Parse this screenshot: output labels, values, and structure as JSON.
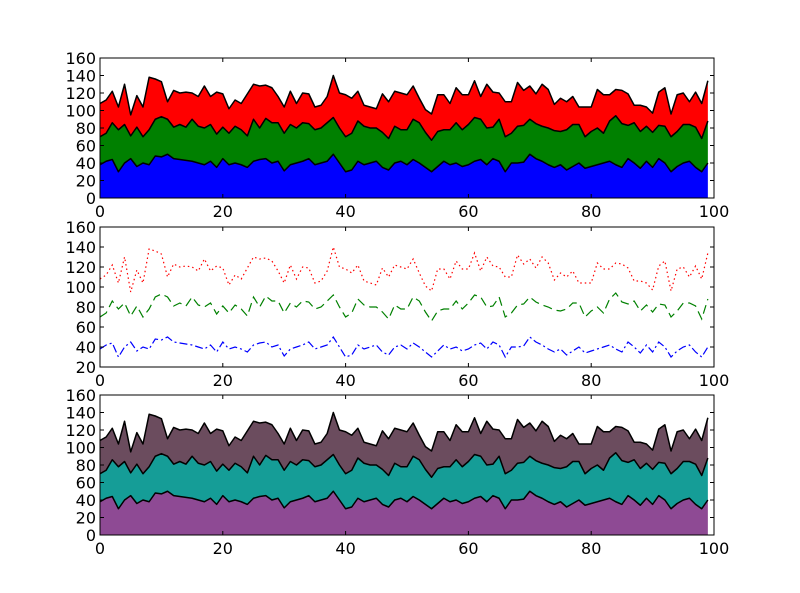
{
  "chart_data": [
    {
      "type": "area",
      "stacked": true,
      "xlim": [
        0,
        100
      ],
      "ylim": [
        0,
        160
      ],
      "xticks": [
        "0",
        "20",
        "40",
        "60",
        "80",
        "100"
      ],
      "yticks": [
        "0",
        "20",
        "40",
        "60",
        "80",
        "100",
        "120",
        "140",
        "160"
      ],
      "colors": [
        "#0000ff",
        "#008000",
        "#ff0000"
      ],
      "edge_color": "#000000",
      "series": [
        {
          "values": [
            38,
            42,
            44,
            30,
            40,
            45,
            36,
            40,
            38,
            48,
            47,
            50,
            45,
            44,
            43,
            42,
            40,
            38,
            42,
            35,
            45,
            38,
            40,
            38,
            35,
            42,
            44,
            45,
            40,
            42,
            31,
            38,
            40,
            42,
            45,
            38,
            40,
            42,
            50,
            40,
            30,
            32,
            42,
            38,
            40,
            42,
            35,
            32,
            40,
            42,
            38,
            44,
            40,
            35,
            30,
            36,
            42,
            38,
            40,
            36,
            38,
            42,
            44,
            38,
            45,
            42,
            30,
            40,
            40,
            41,
            50,
            45,
            42,
            38,
            35,
            38,
            32,
            36,
            40,
            34,
            36,
            38,
            40,
            42,
            38,
            35,
            45,
            40,
            34,
            42,
            35,
            45,
            40,
            30,
            36,
            40,
            42,
            35,
            30,
            40
          ]
        },
        {
          "values": [
            32,
            32,
            42,
            48,
            44,
            26,
            45,
            30,
            40,
            42,
            46,
            40,
            36,
            40,
            38,
            48,
            42,
            42,
            42,
            38,
            36,
            36,
            42,
            40,
            36,
            48,
            36,
            46,
            46,
            44,
            43,
            46,
            40,
            44,
            40,
            40,
            40,
            44,
            42,
            40,
            40,
            42,
            46,
            44,
            40,
            38,
            40,
            36,
            42,
            36,
            40,
            46,
            46,
            40,
            36,
            40,
            36,
            40,
            46,
            42,
            46,
            50,
            46,
            42,
            36,
            48,
            40,
            34,
            42,
            42,
            40,
            40,
            40,
            42,
            42,
            38,
            46,
            48,
            44,
            36,
            40,
            42,
            34,
            46,
            56,
            50,
            38,
            46,
            42,
            40,
            40,
            38,
            42,
            40,
            40,
            44,
            42,
            46,
            38,
            48
          ]
        },
        {
          "values": [
            38,
            38,
            36,
            26,
            46,
            24,
            36,
            34,
            60,
            46,
            40,
            20,
            42,
            36,
            40,
            30,
            34,
            48,
            32,
            48,
            38,
            28,
            30,
            30,
            48,
            40,
            48,
            38,
            40,
            30,
            30,
            38,
            28,
            34,
            34,
            26,
            26,
            30,
            48,
            40,
            48,
            40,
            34,
            24,
            24,
            22,
            44,
            42,
            40,
            42,
            40,
            38,
            28,
            26,
            30,
            42,
            40,
            30,
            40,
            40,
            34,
            42,
            26,
            50,
            40,
            30,
            40,
            36,
            50,
            40,
            38,
            34,
            48,
            44,
            30,
            38,
            32,
            32,
            20,
            34,
            28,
            44,
            44,
            30,
            30,
            38,
            36,
            20,
            30,
            22,
            22,
            38,
            44,
            26,
            42,
            36,
            26,
            40,
            40,
            46
          ]
        }
      ]
    },
    {
      "type": "line",
      "xlim": [
        0,
        100
      ],
      "ylim": [
        20,
        160
      ],
      "xticks": [
        "0",
        "20",
        "40",
        "60",
        "80",
        "100"
      ],
      "yticks": [
        "20",
        "40",
        "60",
        "80",
        "100",
        "120",
        "140",
        "160"
      ],
      "line_styles": [
        "dashdot",
        "dashed",
        "dotted"
      ],
      "colors": [
        "#0000ff",
        "#008000",
        "#ff0000"
      ],
      "note_stacked": "lines show cumulative sums of the three series"
    },
    {
      "type": "area",
      "stacked": true,
      "xlim": [
        0,
        100
      ],
      "ylim": [
        0,
        160
      ],
      "xticks": [
        "0",
        "20",
        "40",
        "60",
        "80",
        "100"
      ],
      "yticks": [
        "0",
        "20",
        "40",
        "60",
        "80",
        "100",
        "120",
        "140",
        "160"
      ],
      "colors": [
        "#8e4a94",
        "#159d97",
        "#6b4c5e"
      ],
      "edge_color": "#000000"
    }
  ]
}
